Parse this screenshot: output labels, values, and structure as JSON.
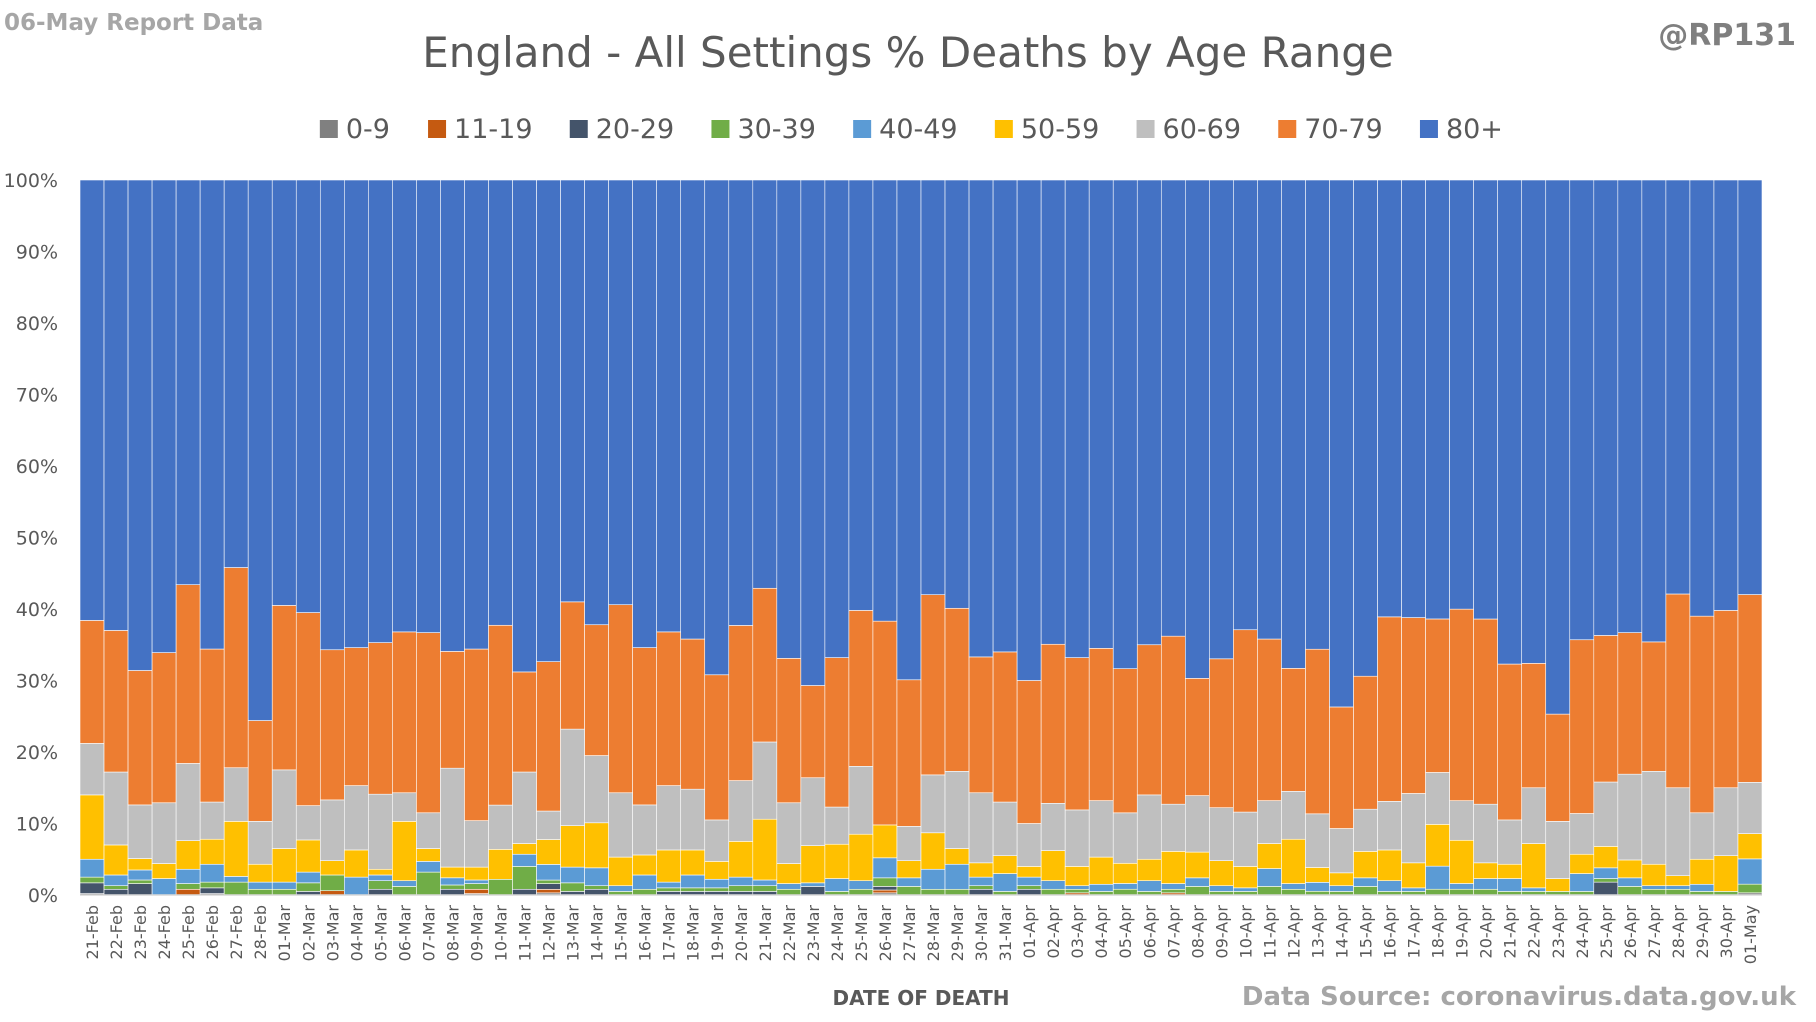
{
  "header": {
    "report_label": "06-May Report Data",
    "author": "@RP131",
    "source": "Data Source: coronavirus.data.gov.uk"
  },
  "chart_data": {
    "type": "bar",
    "stacked": "percent",
    "title": "England - All Settings % Deaths by Age Range",
    "xlabel": "DATE OF DEATH",
    "ylabel": "",
    "ylim": [
      0,
      100
    ],
    "yticks": [
      "0%",
      "10%",
      "20%",
      "30%",
      "40%",
      "50%",
      "60%",
      "70%",
      "80%",
      "90%",
      "100%"
    ],
    "legend_position": "top",
    "grid": false,
    "categories": [
      "21-Feb",
      "22-Feb",
      "23-Feb",
      "24-Feb",
      "25-Feb",
      "26-Feb",
      "27-Feb",
      "28-Feb",
      "01-Mar",
      "02-Mar",
      "03-Mar",
      "04-Mar",
      "05-Mar",
      "06-Mar",
      "07-Mar",
      "08-Mar",
      "09-Mar",
      "10-Mar",
      "11-Mar",
      "12-Mar",
      "13-Mar",
      "14-Mar",
      "15-Mar",
      "16-Mar",
      "17-Mar",
      "18-Mar",
      "19-Mar",
      "20-Mar",
      "21-Mar",
      "22-Mar",
      "23-Mar",
      "24-Mar",
      "25-Mar",
      "26-Mar",
      "27-Mar",
      "28-Mar",
      "29-Mar",
      "30-Mar",
      "31-Mar",
      "01-Apr",
      "02-Apr",
      "03-Apr",
      "04-Apr",
      "05-Apr",
      "06-Apr",
      "07-Apr",
      "08-Apr",
      "09-Apr",
      "10-Apr",
      "11-Apr",
      "12-Apr",
      "13-Apr",
      "14-Apr",
      "15-Apr",
      "16-Apr",
      "17-Apr",
      "18-Apr",
      "19-Apr",
      "20-Apr",
      "21-Apr",
      "22-Apr",
      "23-Apr",
      "24-Apr",
      "25-Apr",
      "26-Apr",
      "27-Apr",
      "28-Apr",
      "29-Apr",
      "30-Apr",
      "01-May"
    ],
    "series": [
      {
        "name": "0-9",
        "color": "#808080",
        "values": [
          0.2,
          0,
          0,
          0,
          0,
          0.2,
          0,
          0,
          0,
          0,
          0,
          0,
          0,
          0,
          0,
          0,
          0.2,
          0,
          0,
          0.3,
          0,
          0,
          0,
          0,
          0,
          0,
          0,
          0,
          0,
          0,
          0,
          0,
          0,
          0.3,
          0,
          0,
          0,
          0,
          0,
          0,
          0,
          0,
          0,
          0,
          0,
          0,
          0,
          0,
          0,
          0,
          0,
          0,
          0,
          0,
          0,
          0,
          0,
          0,
          0,
          0,
          0,
          0,
          0,
          0,
          0,
          0,
          0,
          0,
          0,
          0.3
        ]
      },
      {
        "name": "11-19",
        "color": "#c55a11",
        "values": [
          0,
          0,
          0,
          0,
          0.8,
          0,
          0,
          0,
          0,
          0,
          0.6,
          0,
          0,
          0,
          0,
          0,
          0.6,
          0,
          0,
          0.5,
          0,
          0,
          0,
          0,
          0,
          0,
          0,
          0,
          0,
          0,
          0,
          0,
          0,
          0.4,
          0,
          0,
          0,
          0,
          0,
          0,
          0,
          0.3,
          0,
          0,
          0,
          0.3,
          0,
          0,
          0,
          0,
          0,
          0,
          0,
          0,
          0,
          0,
          0,
          0,
          0,
          0,
          0,
          0,
          0,
          0,
          0,
          0,
          0,
          0,
          0,
          0
        ]
      },
      {
        "name": "20-29",
        "color": "#44546a",
        "values": [
          1.5,
          0.8,
          1.6,
          0,
          0,
          0.8,
          0,
          0,
          0,
          0.5,
          0,
          0,
          0.8,
          0,
          0,
          0.8,
          0,
          0,
          0.8,
          0.8,
          0.5,
          0.8,
          0,
          0,
          0.5,
          0.5,
          0.5,
          0.5,
          0.5,
          0,
          1.2,
          0,
          0,
          0.5,
          0,
          0,
          0,
          0.8,
          0,
          0.8,
          0,
          0,
          0,
          0,
          0,
          0,
          0,
          0,
          0,
          0,
          0,
          0,
          0,
          0,
          0,
          0,
          0,
          0,
          0,
          0,
          0,
          0,
          0,
          1.8,
          0,
          0,
          0,
          0,
          0,
          0
        ]
      },
      {
        "name": "30-39",
        "color": "#70ad47",
        "values": [
          0.8,
          0.5,
          0.5,
          0,
          0.8,
          0.8,
          1.8,
          0.8,
          0.8,
          1.2,
          2.2,
          0,
          1.2,
          1.2,
          3.2,
          0.6,
          0.8,
          2.2,
          3.2,
          0.5,
          1.2,
          0.5,
          0.5,
          0.8,
          0.5,
          0.5,
          0.5,
          0.8,
          0.8,
          0.8,
          0,
          0.5,
          0.8,
          1.2,
          1.2,
          0.8,
          0.8,
          0.5,
          0.5,
          0.5,
          0.8,
          0.5,
          0.5,
          0.8,
          0.5,
          0.5,
          1.2,
          0.5,
          0.5,
          1.2,
          0.8,
          0.5,
          0.5,
          1.2,
          0.5,
          0.5,
          0.8,
          0.8,
          0.8,
          0.5,
          0.5,
          0.5,
          0.5,
          0.5,
          1.2,
          0.8,
          0.8,
          0.5,
          0.5,
          1.2
        ]
      },
      {
        "name": "40-49",
        "color": "#5b9bd5",
        "values": [
          2.5,
          1.5,
          1.4,
          2.3,
          2.0,
          2.5,
          0.8,
          1.0,
          1.0,
          1.5,
          0,
          2.5,
          0.8,
          0.8,
          1.5,
          1.0,
          0.5,
          0,
          1.7,
          2.2,
          2.2,
          2.5,
          0.8,
          2.0,
          0.8,
          1.8,
          1.2,
          1.2,
          0.8,
          0.8,
          0.5,
          1.8,
          1.2,
          2.8,
          1.2,
          2.8,
          3.5,
          1.2,
          2.5,
          1.2,
          1.2,
          0.5,
          1.0,
          0.8,
          1.5,
          0.8,
          1.2,
          0.8,
          0.5,
          2.5,
          0.8,
          1.2,
          0.8,
          1.2,
          1.5,
          0.5,
          3.2,
          0.8,
          1.5,
          1.8,
          0.5,
          0,
          2.5,
          1.5,
          1.2,
          0.5,
          0.5,
          1.0,
          0,
          3.5
        ]
      },
      {
        "name": "50-59",
        "color": "#ffc000",
        "values": [
          9.0,
          4.2,
          1.6,
          2.1,
          4.0,
          3.5,
          7.7,
          2.5,
          4.7,
          4.5,
          2.0,
          3.8,
          0.8,
          8.3,
          1.8,
          1.5,
          1.8,
          4.2,
          1.5,
          3.5,
          5.8,
          6.3,
          4.0,
          2.8,
          4.5,
          3.5,
          2.5,
          5.0,
          8.5,
          2.8,
          5.2,
          4.8,
          6.5,
          4.6,
          2.4,
          5.1,
          2.2,
          2.0,
          2.5,
          1.5,
          4.2,
          2.7,
          3.8,
          2.8,
          3.0,
          4.5,
          3.6,
          3.5,
          3.0,
          3.5,
          6.2,
          2.0,
          1.8,
          3.7,
          4.3,
          3.5,
          5.8,
          6.0,
          2.2,
          2.0,
          6.2,
          1.8,
          2.7,
          3.0,
          2.5,
          3.0,
          1.4,
          3.5,
          5.0,
          3.5
        ]
      },
      {
        "name": "60-69",
        "color": "#bfbfbf",
        "values": [
          7.2,
          10.2,
          7.5,
          8.5,
          10.8,
          5.2,
          7.5,
          6.0,
          11.0,
          4.8,
          8.5,
          9.0,
          10.5,
          4.0,
          5.0,
          13.8,
          6.5,
          6.2,
          10.0,
          4.0,
          13.5,
          9.4,
          9.0,
          7.0,
          9.0,
          8.5,
          5.8,
          8.5,
          10.8,
          8.5,
          9.5,
          5.2,
          9.5,
          0,
          4.8,
          8.1,
          10.8,
          9.8,
          7.5,
          6.0,
          6.6,
          7.9,
          7.9,
          7.0,
          9.0,
          6.6,
          7.9,
          7.4,
          7.6,
          6.0,
          6.7,
          7.2,
          6.2,
          5.9,
          6.8,
          9.7,
          7.2,
          5.5,
          8.2,
          6.2,
          7.8,
          8.0,
          5.7,
          9.0,
          12.0,
          13.0,
          12.3,
          6.5,
          9.5,
          7.1
        ]
      },
      {
        "name": "70-79",
        "color": "#ed7d31",
        "values": [
          17.2,
          19.8,
          18.8,
          21.0,
          25.0,
          21.4,
          28.0,
          14.1,
          23.0,
          27.0,
          21.0,
          19.3,
          21.2,
          22.5,
          25.2,
          16.3,
          24.0,
          25.2,
          14.0,
          21.0,
          17.8,
          18.3,
          26.3,
          22.0,
          21.5,
          21.0,
          20.3,
          21.7,
          21.5,
          20.2,
          12.9,
          20.9,
          21.8,
          28.5,
          20.5,
          25.2,
          22.8,
          19.0,
          21.0,
          20.0,
          22.2,
          21.3,
          21.3,
          20.0,
          21.0,
          23.5,
          16.4,
          20.8,
          25.5,
          22.6,
          17.2,
          22.1,
          17.0,
          18.6,
          25.8,
          24.6,
          21.3,
          26.6,
          25.9,
          21.8,
          17.4,
          15.0,
          24.3,
          20.5,
          19.8,
          18.1,
          27.1,
          27.5,
          24.8,
          26.0
        ]
      },
      {
        "name": "80+",
        "color": "#4472c4",
        "values": [
          61.6,
          63.0,
          68.6,
          66.1,
          56.6,
          65.6,
          54.2,
          75.6,
          59.5,
          60.5,
          65.7,
          65.4,
          64.7,
          63.2,
          63.3,
          65.8,
          65.6,
          62.4,
          68.8,
          67.7,
          59.0,
          62.2,
          59.4,
          65.4,
          63.2,
          64.2,
          69.2,
          62.3,
          57.1,
          66.9,
          70.7,
          66.8,
          60.2,
          61.7,
          69.9,
          58.0,
          59.9,
          66.7,
          66.0,
          70.0,
          64.8,
          66.8,
          65.5,
          67.8,
          65.0,
          63.8,
          69.7,
          66.9,
          62.9,
          64.2,
          68.3,
          63.0,
          73.7,
          69.4,
          61.1,
          61.2,
          60.9,
          59.6,
          61.4,
          67.7,
          67.6,
          74.7,
          64.3,
          63.7,
          63.3,
          64.6,
          57.9,
          61.0,
          60.2,
          57.4
        ]
      }
    ]
  }
}
